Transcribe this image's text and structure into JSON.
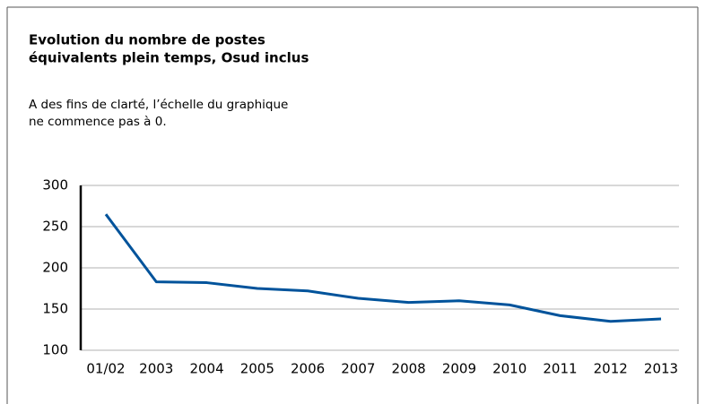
{
  "chart_data": {
    "type": "line",
    "title": [
      "Evolution du nombre de postes",
      "équivalents plein temps, Osud inclus"
    ],
    "subtitle": [
      "A des fins de clarté, l’échelle du graphique",
      "ne commence pas à 0."
    ],
    "categories": [
      "01/02",
      "2003",
      "2004",
      "2005",
      "2006",
      "2007",
      "2008",
      "2009",
      "2010",
      "2011",
      "2012",
      "2013"
    ],
    "series": [
      {
        "color": "#00539b",
        "values": [
          265,
          183,
          182,
          175,
          172,
          163,
          158,
          160,
          155,
          142,
          135,
          138
        ]
      }
    ],
    "ylim": [
      100,
      300
    ],
    "yticks": [
      100,
      150,
      200,
      250,
      300
    ],
    "grid": true
  }
}
